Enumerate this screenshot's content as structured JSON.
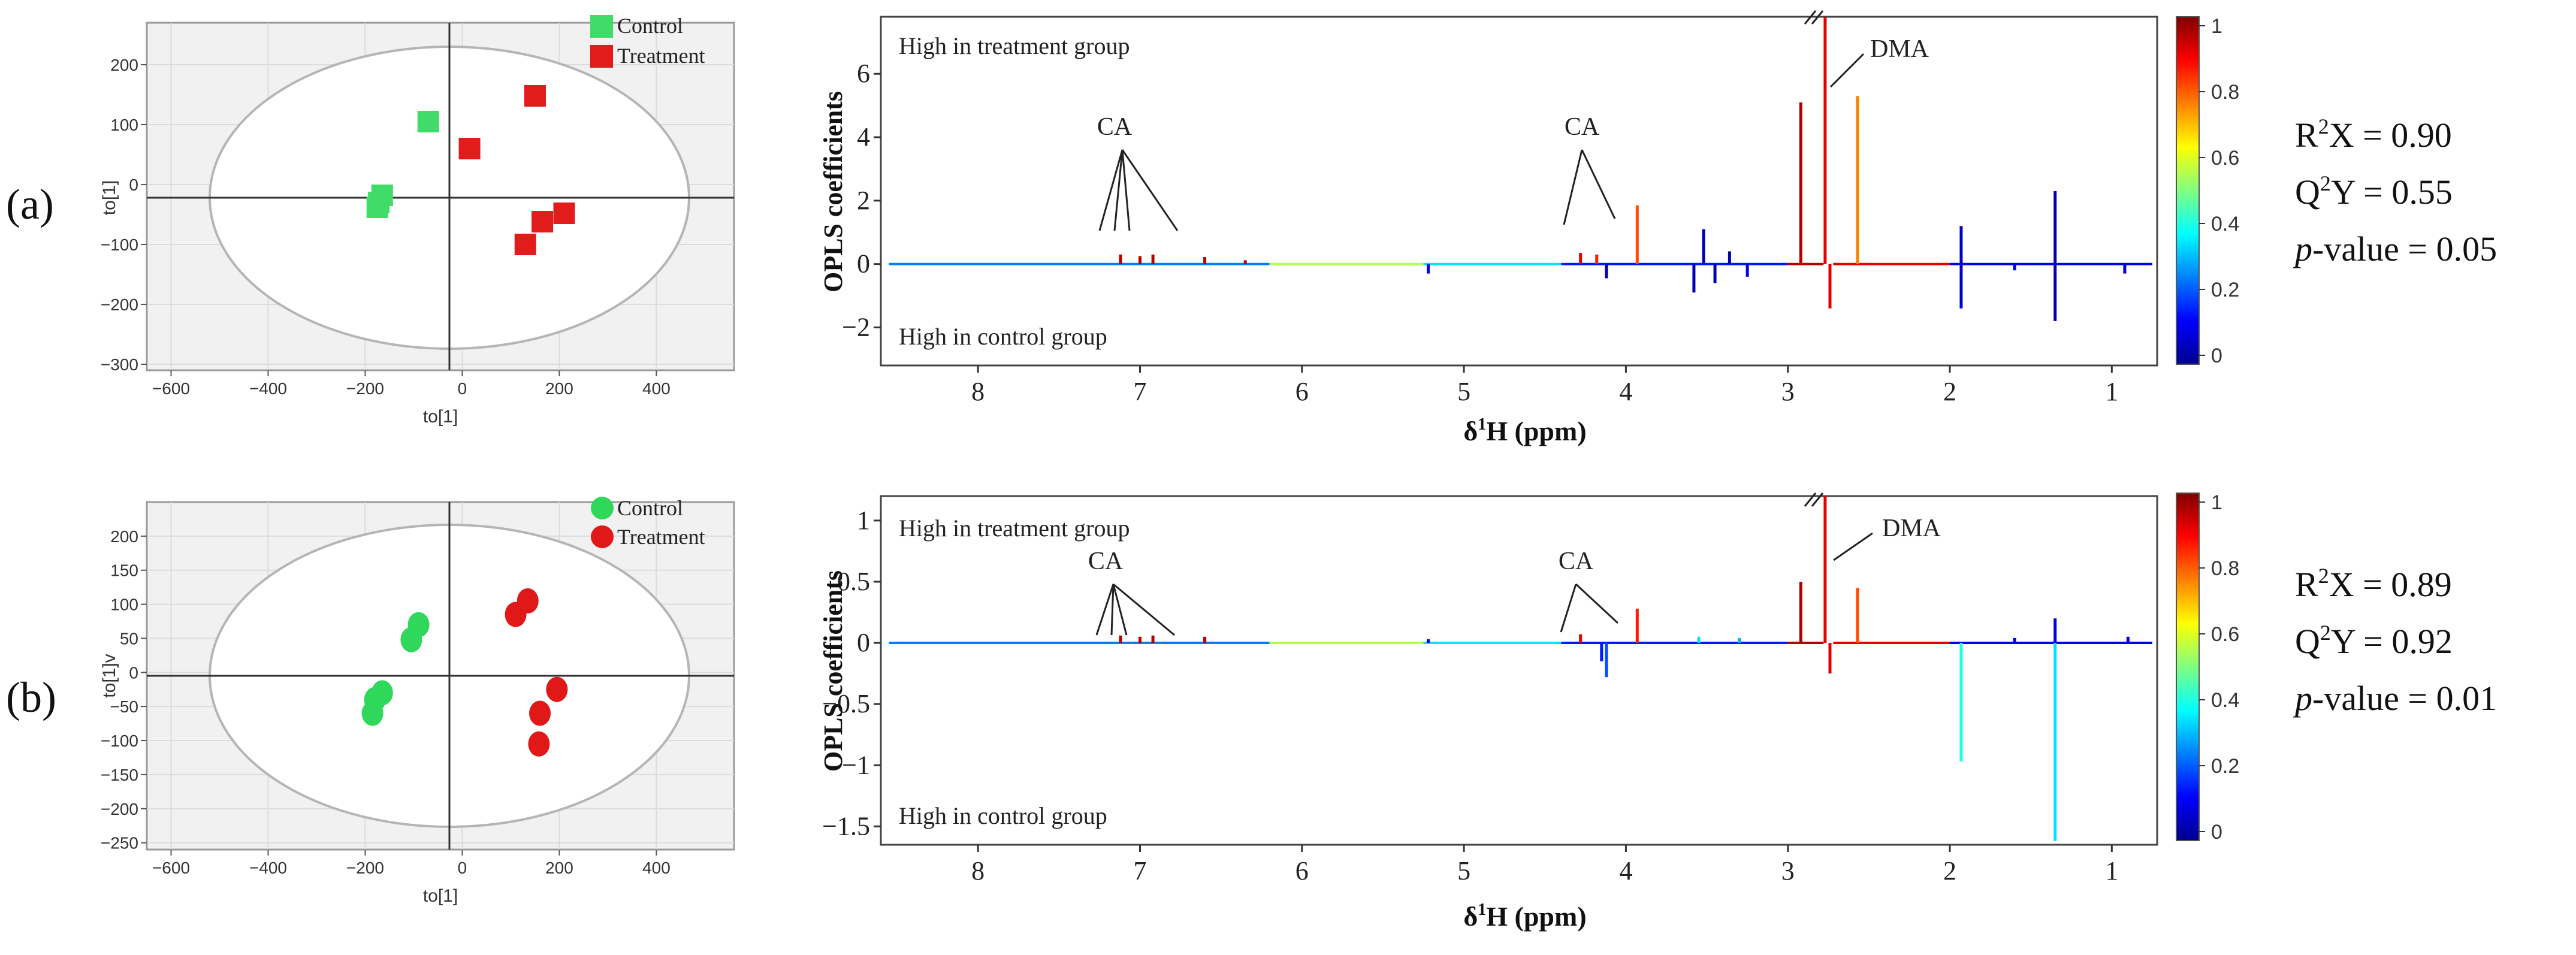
{
  "panels": [
    {
      "id": "a",
      "label": "(a)",
      "marker": "square",
      "scores": {
        "x_ticks": [
          "−600",
          "−400",
          "−200",
          "0",
          "200",
          "400"
        ],
        "y_ticks": [
          "200",
          "100",
          "0",
          "−100",
          "−200",
          "−300"
        ],
        "x_label": "to[1]",
        "y_label": "to[1]",
        "xlim": [
          -650,
          560
        ],
        "ylim": [
          -310,
          270
        ],
        "legend": [
          "Control",
          "Treatment"
        ],
        "control": [
          [
            -70,
            105
          ],
          [
            -165,
            -18
          ],
          [
            -172,
            -30
          ],
          [
            -175,
            -38
          ]
        ],
        "treatment": [
          [
            150,
            148
          ],
          [
            15,
            60
          ],
          [
            210,
            -48
          ],
          [
            165,
            -62
          ],
          [
            130,
            -100
          ]
        ]
      },
      "loadings": {
        "y_label": "OPLS coefficients",
        "x_label_prefix": "δ",
        "x_label_sup": "1",
        "x_label_suffix": "H (ppm)",
        "x_ticks": [
          "8",
          "7",
          "6",
          "5",
          "4",
          "3",
          "2",
          "1"
        ],
        "y_ticks": [
          "6",
          "4",
          "2",
          "0",
          "−2"
        ],
        "y_tick_values": [
          6,
          4,
          2,
          0,
          -2
        ],
        "ylim": [
          -3.2,
          7.8
        ],
        "text_top": "High in treatment group",
        "text_bottom": "High in control group",
        "annotations": [
          "CA",
          "CA",
          "DMA"
        ],
        "colorbar_ticks": [
          "1",
          "0.8",
          "0.6",
          "0.4",
          "0.2",
          "0"
        ],
        "peaks": [
          [
            7.12,
            0.3,
            0.95
          ],
          [
            7.0,
            0.25,
            0.95
          ],
          [
            6.92,
            0.3,
            0.95
          ],
          [
            6.6,
            0.22,
            0.95
          ],
          [
            6.35,
            0.12,
            0.95
          ],
          [
            4.28,
            0.35,
            0.9
          ],
          [
            4.18,
            0.3,
            0.85
          ],
          [
            3.93,
            1.85,
            0.8
          ],
          [
            2.92,
            5.1,
            0.95
          ],
          [
            2.77,
            7.8,
            0.9
          ],
          [
            2.74,
            -1.4,
            0.9
          ],
          [
            2.57,
            5.3,
            0.75
          ],
          [
            3.58,
            -0.9,
            0.05
          ],
          [
            3.52,
            1.1,
            0.05
          ],
          [
            3.45,
            -0.6,
            0.05
          ],
          [
            3.36,
            0.4,
            0.05
          ],
          [
            3.25,
            -0.4,
            0.1
          ],
          [
            4.12,
            -0.45,
            0.05
          ],
          [
            1.93,
            -1.4,
            0.08
          ],
          [
            1.93,
            1.2,
            0.08
          ],
          [
            1.35,
            2.3,
            0.05
          ],
          [
            1.35,
            -1.8,
            0.05
          ],
          [
            1.6,
            -0.2,
            0.1
          ],
          [
            0.92,
            -0.3,
            0.1
          ],
          [
            5.22,
            -0.3,
            0.1
          ]
        ]
      },
      "stats": {
        "r2x_value": "= 0.90",
        "q2y_value": "= 0.55",
        "p_value": "-value = 0.05"
      }
    },
    {
      "id": "b",
      "label": "(b)",
      "marker": "circle",
      "scores": {
        "x_ticks": [
          "−600",
          "−400",
          "−200",
          "0",
          "200",
          "400"
        ],
        "y_ticks": [
          "200",
          "150",
          "100",
          "50",
          "0",
          "−50",
          "−100",
          "−150",
          "−200",
          "−250"
        ],
        "x_label": "to[1]",
        "y_label": "to[1]v",
        "xlim": [
          -650,
          560
        ],
        "ylim": [
          -260,
          250
        ],
        "legend": [
          "Control",
          "Treatment"
        ],
        "control": [
          [
            -90,
            70
          ],
          [
            -105,
            48
          ],
          [
            -165,
            -30
          ],
          [
            -180,
            -40
          ],
          [
            -185,
            -60
          ]
        ],
        "treatment": [
          [
            135,
            105
          ],
          [
            110,
            85
          ],
          [
            195,
            -25
          ],
          [
            160,
            -60
          ],
          [
            158,
            -105
          ]
        ]
      },
      "loadings": {
        "y_label": "OPLS coefficients",
        "x_label_prefix": "δ",
        "x_label_sup": "1",
        "x_label_suffix": "H (ppm)",
        "x_ticks": [
          "8",
          "7",
          "6",
          "5",
          "4",
          "3",
          "2",
          "1"
        ],
        "y_ticks": [
          "1",
          "0.5",
          "0",
          "−0.5",
          "−1",
          "−1.5"
        ],
        "y_tick_values": [
          1,
          0.5,
          0,
          -0.5,
          -1,
          -1.5
        ],
        "ylim": [
          -1.65,
          1.2
        ],
        "text_top": "High in treatment group",
        "text_bottom": "High in control group",
        "annotations": [
          "CA",
          "CA",
          "DMA"
        ],
        "colorbar_ticks": [
          "1",
          "0.8",
          "0.6",
          "0.4",
          "0.2",
          "0"
        ],
        "peaks": [
          [
            7.12,
            0.06,
            0.95
          ],
          [
            7.0,
            0.05,
            0.95
          ],
          [
            6.92,
            0.06,
            0.95
          ],
          [
            6.6,
            0.05,
            0.95
          ],
          [
            4.28,
            0.07,
            0.9
          ],
          [
            3.93,
            0.28,
            0.85
          ],
          [
            2.92,
            0.5,
            0.95
          ],
          [
            2.77,
            1.2,
            0.9
          ],
          [
            2.74,
            -0.25,
            0.9
          ],
          [
            2.57,
            0.45,
            0.8
          ],
          [
            4.12,
            -0.28,
            0.2
          ],
          [
            4.15,
            -0.15,
            0.15
          ],
          [
            3.55,
            0.05,
            0.35
          ],
          [
            3.3,
            0.04,
            0.3
          ],
          [
            1.93,
            -0.97,
            0.4
          ],
          [
            1.35,
            -1.62,
            0.35
          ],
          [
            1.35,
            0.2,
            0.1
          ],
          [
            0.9,
            0.05,
            0.1
          ],
          [
            5.22,
            0.03,
            0.1
          ],
          [
            1.6,
            0.04,
            0.1
          ]
        ]
      },
      "stats": {
        "r2x_value": "= 0.89",
        "q2y_value": "= 0.92",
        "p_value": "-value = 0.01"
      }
    }
  ],
  "colors": {
    "control": "#2fd85a",
    "treatment": "#e01818",
    "control_sq": "#3fdc6a",
    "treatment_sq": "#e21b1b"
  }
}
